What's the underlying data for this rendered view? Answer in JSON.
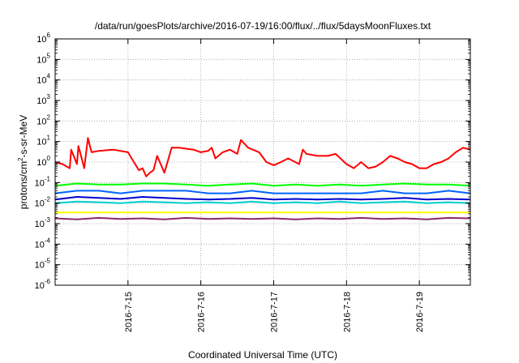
{
  "chart_data": {
    "type": "line",
    "title": "/data/run/goesPlots/archive/2016-07-19/16:00/flux/../flux/5daysMoonFluxes.txt",
    "xlabel": "Coordinated Universal Time (UTC)",
    "ylabel": "protons/cm2-s-sr-MeV",
    "ylabel_parts": {
      "pre": "protons/cm",
      "sup": "2",
      "post": "-s-sr-MeV"
    },
    "yscale": "log",
    "ylim": [
      1e-06,
      1000000.0
    ],
    "xlim": [
      0,
      5.7
    ],
    "grid": true,
    "x_ticks": [
      {
        "x": 1,
        "label": "2016-7-15"
      },
      {
        "x": 2,
        "label": "2016-7-16"
      },
      {
        "x": 3,
        "label": "2016-7-17"
      },
      {
        "x": 4,
        "label": "2016-7-18"
      },
      {
        "x": 5,
        "label": "2016-7-19"
      }
    ],
    "y_ticks": [
      {
        "exp": -6,
        "base": "10",
        "sup": "-6"
      },
      {
        "exp": -5,
        "base": "10",
        "sup": "-5"
      },
      {
        "exp": -4,
        "base": "10",
        "sup": "-4"
      },
      {
        "exp": -3,
        "base": "10",
        "sup": "-3"
      },
      {
        "exp": -2,
        "base": "10",
        "sup": "-2"
      },
      {
        "exp": -1,
        "base": "10",
        "sup": "-1"
      },
      {
        "exp": 0,
        "base": "10",
        "sup": "0"
      },
      {
        "exp": 1,
        "base": "10",
        "sup": "1"
      },
      {
        "exp": 2,
        "base": "10",
        "sup": "2"
      },
      {
        "exp": 3,
        "base": "10",
        "sup": "3"
      },
      {
        "exp": 4,
        "base": "10",
        "sup": "4"
      },
      {
        "exp": 5,
        "base": "10",
        "sup": "5"
      },
      {
        "exp": 6,
        "base": "10",
        "sup": "6"
      }
    ],
    "series": [
      {
        "color": "#ff0000",
        "x": [
          0.0,
          0.1,
          0.2,
          0.22,
          0.3,
          0.32,
          0.4,
          0.45,
          0.5,
          0.6,
          0.8,
          1.0,
          1.05,
          1.15,
          1.2,
          1.25,
          1.3,
          1.35,
          1.4,
          1.5,
          1.6,
          1.7,
          1.9,
          2.0,
          2.1,
          2.15,
          2.2,
          2.3,
          2.4,
          2.5,
          2.55,
          2.65,
          2.8,
          2.9,
          3.0,
          3.1,
          3.2,
          3.35,
          3.4,
          3.45,
          3.6,
          3.75,
          3.85,
          4.0,
          4.1,
          4.2,
          4.3,
          4.4,
          4.5,
          4.6,
          4.7,
          4.8,
          4.9,
          5.0,
          5.1,
          5.2,
          5.3,
          5.4,
          5.5,
          5.6,
          5.7
        ],
        "y": [
          1.0,
          0.8,
          0.5,
          4.0,
          0.8,
          6.0,
          0.5,
          15.0,
          3.0,
          3.5,
          4.0,
          3.0,
          1.5,
          0.4,
          0.5,
          0.2,
          0.3,
          0.4,
          2.0,
          0.3,
          5.0,
          5.0,
          4.0,
          3.0,
          3.5,
          5.0,
          1.5,
          3.0,
          4.0,
          2.5,
          12.0,
          5.0,
          3.0,
          1.0,
          0.7,
          1.0,
          1.5,
          0.8,
          4.0,
          2.5,
          2.0,
          2.0,
          2.5,
          0.8,
          0.5,
          1.0,
          0.5,
          0.6,
          1.0,
          2.0,
          1.5,
          1.0,
          0.8,
          0.5,
          0.5,
          0.8,
          1.0,
          1.5,
          3.0,
          5.0,
          4.0
        ]
      },
      {
        "color": "#00ff00",
        "x": [
          0.0,
          0.3,
          0.6,
          0.9,
          1.2,
          1.5,
          1.8,
          2.1,
          2.4,
          2.7,
          3.0,
          3.3,
          3.6,
          3.9,
          4.2,
          4.5,
          4.8,
          5.1,
          5.4,
          5.7
        ],
        "y": [
          0.07,
          0.09,
          0.08,
          0.08,
          0.09,
          0.09,
          0.08,
          0.07,
          0.08,
          0.09,
          0.07,
          0.08,
          0.07,
          0.08,
          0.07,
          0.08,
          0.09,
          0.08,
          0.08,
          0.07
        ]
      },
      {
        "color": "#0064ff",
        "x": [
          0.0,
          0.3,
          0.6,
          0.9,
          1.2,
          1.5,
          1.8,
          2.1,
          2.4,
          2.7,
          3.0,
          3.3,
          3.6,
          3.9,
          4.2,
          4.5,
          4.8,
          5.1,
          5.4,
          5.7
        ],
        "y": [
          0.03,
          0.04,
          0.04,
          0.03,
          0.04,
          0.04,
          0.04,
          0.03,
          0.03,
          0.04,
          0.03,
          0.03,
          0.03,
          0.03,
          0.03,
          0.04,
          0.03,
          0.03,
          0.04,
          0.03
        ]
      },
      {
        "color": "#00cfcf",
        "x": [
          0.0,
          0.3,
          0.6,
          0.9,
          1.2,
          1.5,
          1.8,
          2.1,
          2.4,
          2.7,
          3.0,
          3.3,
          3.6,
          3.9,
          4.2,
          4.5,
          4.8,
          5.1,
          5.4,
          5.7
        ],
        "y": [
          0.01,
          0.012,
          0.011,
          0.01,
          0.012,
          0.011,
          0.01,
          0.011,
          0.01,
          0.012,
          0.01,
          0.011,
          0.01,
          0.012,
          0.01,
          0.011,
          0.012,
          0.01,
          0.011,
          0.01
        ]
      },
      {
        "color": "#0000cc",
        "x": [
          0.0,
          0.3,
          0.6,
          0.9,
          1.2,
          1.5,
          1.8,
          2.1,
          2.4,
          2.7,
          3.0,
          3.3,
          3.6,
          3.9,
          4.2,
          4.5,
          4.8,
          5.1,
          5.4,
          5.7
        ],
        "y": [
          0.015,
          0.02,
          0.018,
          0.016,
          0.02,
          0.018,
          0.016,
          0.015,
          0.016,
          0.018,
          0.015,
          0.016,
          0.015,
          0.016,
          0.015,
          0.016,
          0.018,
          0.015,
          0.016,
          0.015
        ]
      },
      {
        "color": "#ffff00",
        "x": [
          0.0,
          0.5,
          1.0,
          1.5,
          2.0,
          2.5,
          3.0,
          3.5,
          4.0,
          4.5,
          5.0,
          5.7
        ],
        "y": [
          0.0035,
          0.0035,
          0.0035,
          0.0035,
          0.0035,
          0.0035,
          0.0035,
          0.0035,
          0.0035,
          0.0035,
          0.0035,
          0.0035
        ]
      },
      {
        "color": "#8b2a6b",
        "x": [
          0.0,
          0.3,
          0.6,
          0.9,
          1.2,
          1.5,
          1.8,
          2.1,
          2.4,
          2.7,
          3.0,
          3.3,
          3.6,
          3.9,
          4.2,
          4.5,
          4.8,
          5.1,
          5.4,
          5.7
        ],
        "y": [
          0.0018,
          0.0016,
          0.0019,
          0.0017,
          0.0018,
          0.0016,
          0.0019,
          0.0017,
          0.0018,
          0.0017,
          0.0018,
          0.0016,
          0.0018,
          0.0017,
          0.0019,
          0.0017,
          0.0018,
          0.0016,
          0.0019,
          0.0018
        ]
      }
    ]
  }
}
